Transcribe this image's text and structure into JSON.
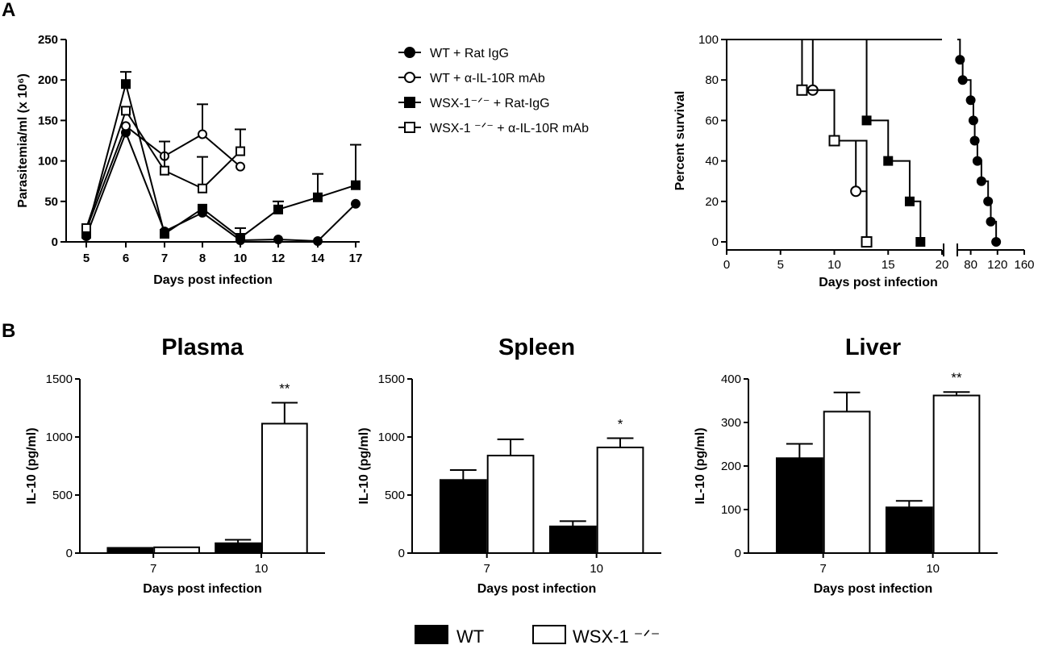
{
  "panel_labels": {
    "a": "A",
    "b": "B"
  },
  "legend_a": {
    "items": [
      {
        "label": "WT + Rat IgG",
        "marker": "filled-circle"
      },
      {
        "label": "WT + α-IL-10R mAb",
        "marker": "open-circle"
      },
      {
        "label": "WSX-1⁻ᐟ⁻ + Rat-IgG",
        "marker": "filled-square"
      },
      {
        "label": "WSX-1 ⁻ᐟ⁻ + α-IL-10R mAb",
        "marker": "open-square"
      }
    ]
  },
  "legend_b": {
    "items": [
      {
        "label": "WT",
        "fill": "#000000"
      },
      {
        "label": "WSX-1 ⁻ᐟ⁻",
        "fill": "#ffffff"
      }
    ]
  },
  "colors": {
    "ink": "#000000",
    "background": "#ffffff"
  },
  "chart_data": [
    {
      "id": "parasitemia",
      "type": "line",
      "title": "",
      "xlabel": "Days post infection",
      "ylabel": "Parasitemia/ml (x 10⁶)",
      "categories": [
        "5",
        "6",
        "7",
        "8",
        "10",
        "12",
        "14",
        "17"
      ],
      "ylim": [
        0,
        250
      ],
      "yticks": [
        0,
        50,
        100,
        150,
        200,
        250
      ],
      "series": [
        {
          "name": "WT + Rat IgG",
          "marker": "filled-circle",
          "values": [
            7,
            135,
            13,
            36,
            2,
            3,
            1,
            47
          ],
          "errors": [
            0,
            0,
            0,
            0,
            0,
            0,
            0,
            0
          ]
        },
        {
          "name": "WT + α-IL-10R mAb",
          "marker": "open-circle",
          "values": [
            15,
            143,
            106,
            133,
            93,
            null,
            null,
            null
          ],
          "errors": [
            0,
            0,
            0,
            37,
            0,
            0,
            0,
            0
          ]
        },
        {
          "name": "WSX-1⁻ᐟ⁻ + Rat-IgG",
          "marker": "filled-square",
          "values": [
            10,
            195,
            10,
            41,
            5,
            40,
            55,
            70
          ],
          "errors": [
            0,
            15,
            0,
            0,
            12,
            10,
            29,
            50
          ]
        },
        {
          "name": "WSX-1 ⁻ᐟ⁻ + α-IL-10R mAb",
          "marker": "open-square",
          "values": [
            17,
            162,
            88,
            66,
            112,
            null,
            null,
            null
          ],
          "errors": [
            0,
            0,
            36,
            39,
            27,
            0,
            0,
            0
          ]
        }
      ]
    },
    {
      "id": "survival",
      "type": "line",
      "title": "",
      "xlabel": "Days post infection",
      "ylabel": "Percent survival",
      "ylim": [
        0,
        100
      ],
      "yticks": [
        0,
        20,
        40,
        60,
        80,
        100
      ],
      "x_segments": [
        {
          "range": [
            0,
            20
          ],
          "ticks": [
            0,
            5,
            10,
            15,
            20
          ]
        },
        {
          "range": [
            60,
            160
          ],
          "ticks": [
            80,
            120,
            160
          ]
        }
      ],
      "series": [
        {
          "name": "WT + Rat IgG",
          "marker": "filled-circle",
          "steps": [
            [
              0,
              100
            ],
            [
              64,
              90
            ],
            [
              68,
              80
            ],
            [
              80,
              70
            ],
            [
              84,
              60
            ],
            [
              86,
              50
            ],
            [
              90,
              40
            ],
            [
              96,
              30
            ],
            [
              106,
              20
            ],
            [
              110,
              10
            ],
            [
              118,
              0
            ]
          ]
        },
        {
          "name": "WT + α-IL-10R mAb",
          "marker": "open-circle",
          "steps": [
            [
              0,
              100
            ],
            [
              8,
              75
            ],
            [
              10,
              50
            ],
            [
              12,
              25
            ],
            [
              13,
              0
            ]
          ]
        },
        {
          "name": "WSX-1⁻ᐟ⁻ + Rat-IgG",
          "marker": "filled-square",
          "steps": [
            [
              0,
              100
            ],
            [
              13,
              60
            ],
            [
              15,
              40
            ],
            [
              17,
              20
            ],
            [
              18,
              0
            ]
          ]
        },
        {
          "name": "WSX-1 ⁻ᐟ⁻ + α-IL-10R mAb",
          "marker": "open-square",
          "steps": [
            [
              0,
              100
            ],
            [
              7,
              75
            ],
            [
              10,
              50
            ],
            [
              13,
              0
            ]
          ]
        }
      ]
    },
    {
      "id": "plasma",
      "type": "bar",
      "title": "Plasma",
      "xlabel": "Days post infection",
      "ylabel": "IL-10 (pg/ml)",
      "categories": [
        "7",
        "10"
      ],
      "ylim": [
        0,
        1500
      ],
      "yticks": [
        0,
        500,
        1000,
        1500
      ],
      "series": [
        {
          "name": "WT",
          "values": [
            45,
            85
          ],
          "errors": [
            0,
            30
          ]
        },
        {
          "name": "WSX-1 ⁻ᐟ⁻",
          "values": [
            50,
            1115
          ],
          "errors": [
            0,
            180
          ]
        }
      ],
      "annotations": [
        {
          "category": "10",
          "series": "WSX-1 ⁻ᐟ⁻",
          "text": "**"
        }
      ]
    },
    {
      "id": "spleen",
      "type": "bar",
      "title": "Spleen",
      "xlabel": "Days post infection",
      "ylabel": "IL-10 (pg/ml)",
      "categories": [
        "7",
        "10"
      ],
      "ylim": [
        0,
        1500
      ],
      "yticks": [
        0,
        500,
        1000,
        1500
      ],
      "series": [
        {
          "name": "WT",
          "values": [
            630,
            230
          ],
          "errors": [
            85,
            45
          ]
        },
        {
          "name": "WSX-1 ⁻ᐟ⁻",
          "values": [
            840,
            910
          ],
          "errors": [
            140,
            80
          ]
        }
      ],
      "annotations": [
        {
          "category": "10",
          "series": "WSX-1 ⁻ᐟ⁻",
          "text": "*"
        }
      ]
    },
    {
      "id": "liver",
      "type": "bar",
      "title": "Liver",
      "xlabel": "Days post infection",
      "ylabel": "IL-10 (pg/ml)",
      "categories": [
        "7",
        "10"
      ],
      "ylim": [
        0,
        400
      ],
      "yticks": [
        0,
        100,
        200,
        300,
        400
      ],
      "series": [
        {
          "name": "WT",
          "values": [
            218,
            105
          ],
          "errors": [
            33,
            15
          ]
        },
        {
          "name": "WSX-1 ⁻ᐟ⁻",
          "values": [
            325,
            362
          ],
          "errors": [
            44,
            8
          ]
        }
      ],
      "annotations": [
        {
          "category": "10",
          "series": "WSX-1 ⁻ᐟ⁻",
          "text": "**"
        }
      ]
    }
  ]
}
